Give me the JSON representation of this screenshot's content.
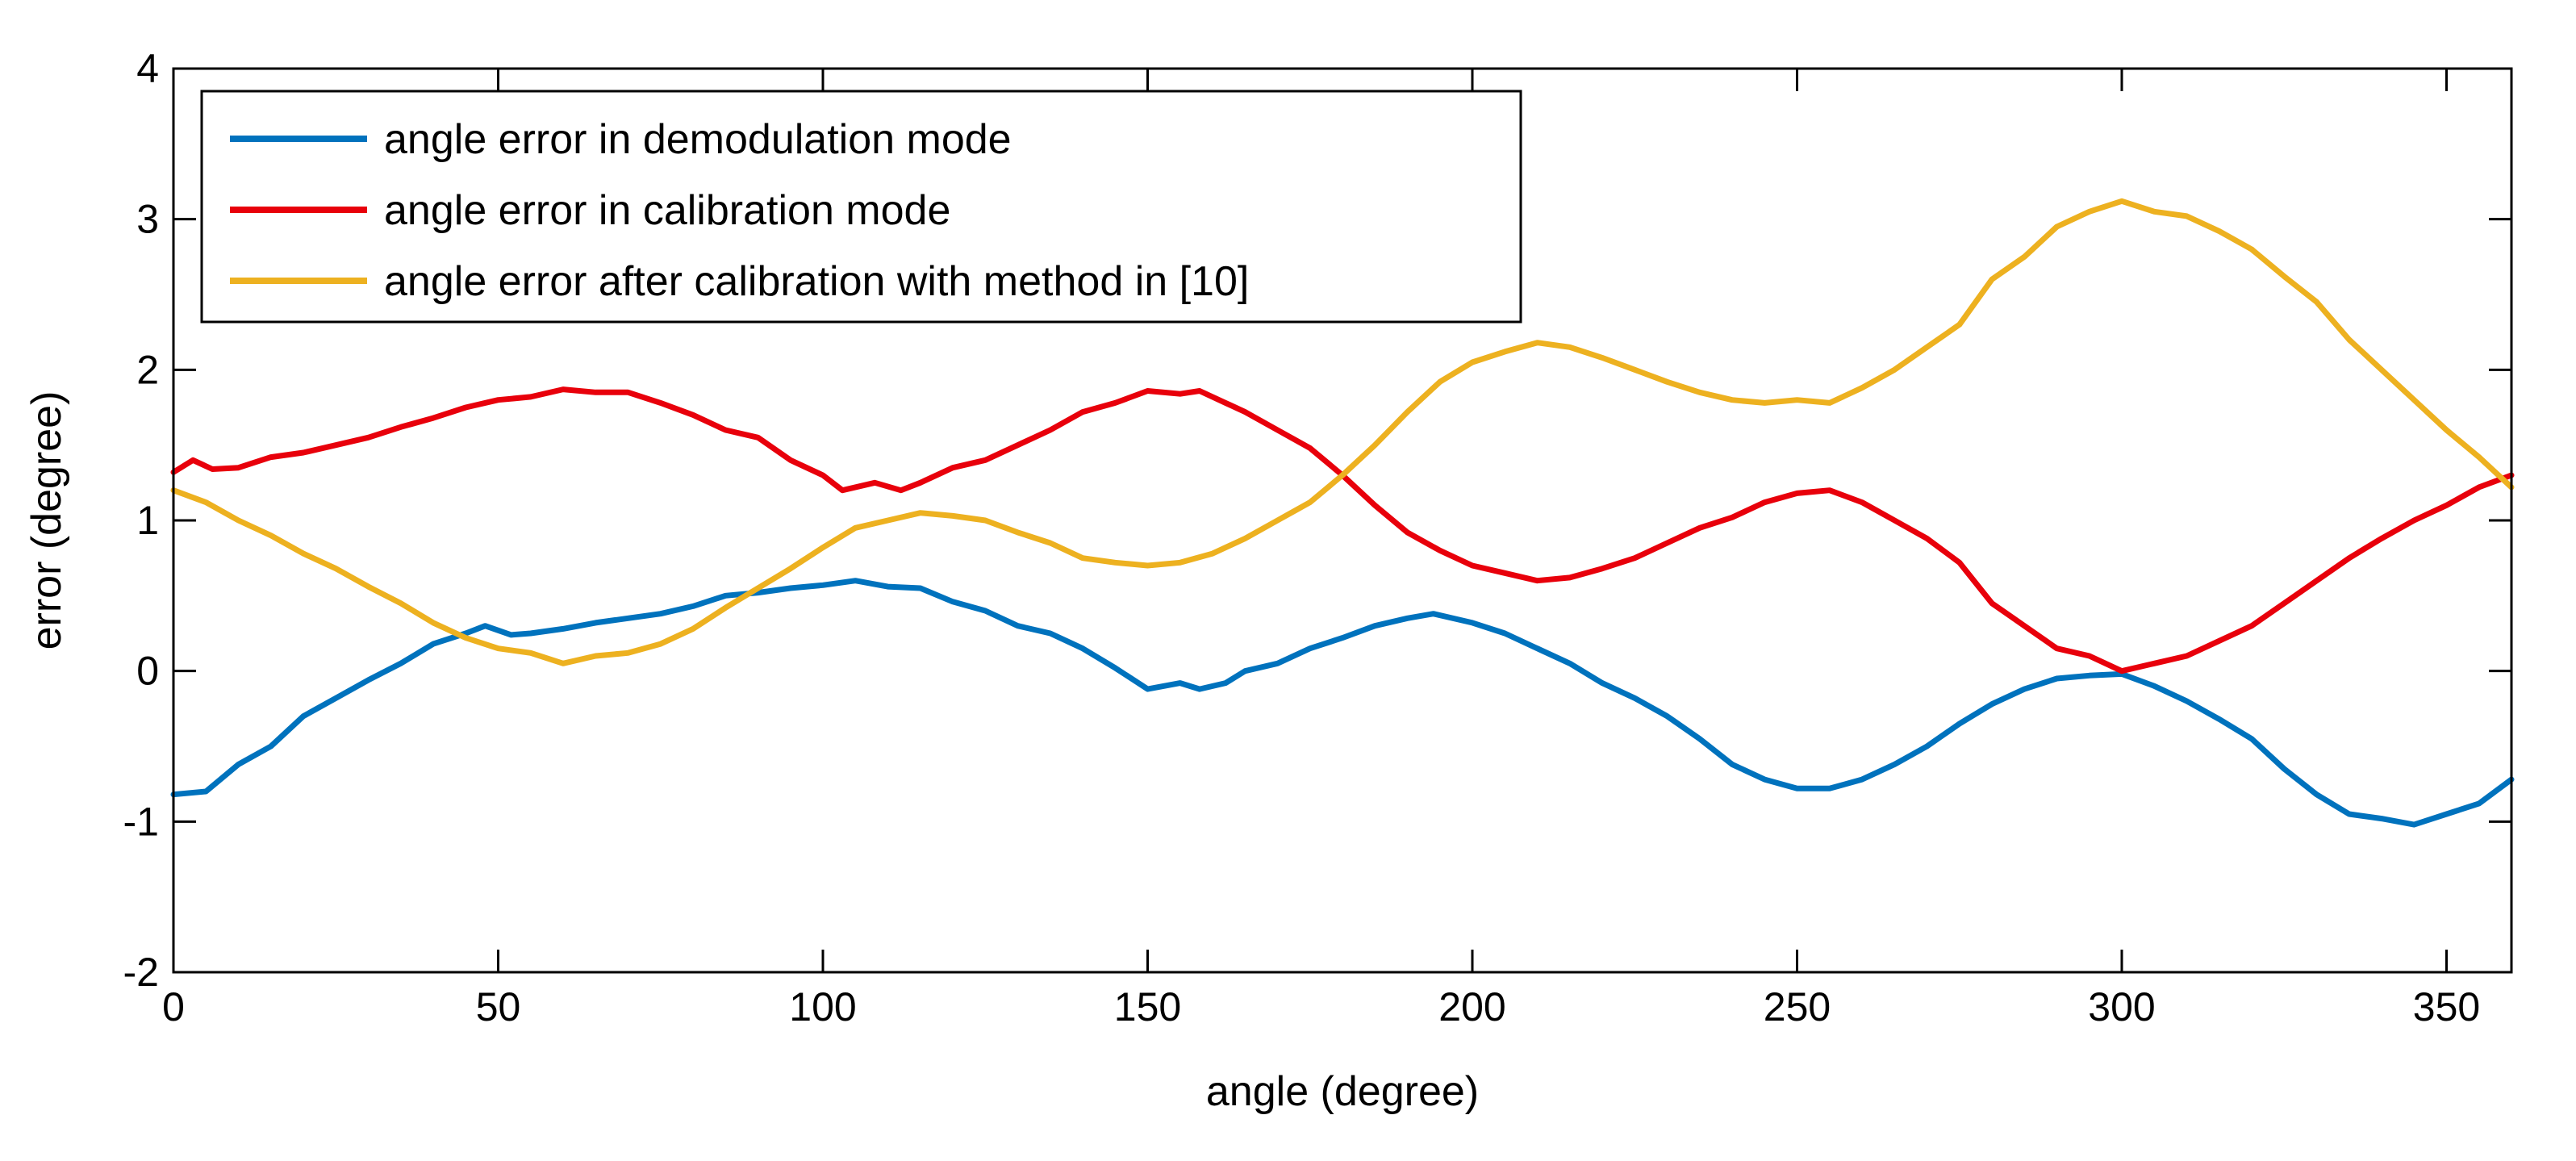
{
  "chart_data": {
    "type": "line",
    "title": "",
    "xlabel": "angle (degree)",
    "ylabel": "error (degree)",
    "xlim": [
      0,
      360
    ],
    "ylim": [
      -2,
      4
    ],
    "xticks": [
      0,
      50,
      100,
      150,
      200,
      250,
      300,
      350
    ],
    "yticks": [
      -2,
      -1,
      0,
      1,
      2,
      3,
      4
    ],
    "grid": false,
    "legend_position": "top-left",
    "series": [
      {
        "name": "angle error in demodulation mode",
        "color": "#0072BD",
        "points": [
          [
            0,
            -0.82
          ],
          [
            5,
            -0.8
          ],
          [
            10,
            -0.62
          ],
          [
            15,
            -0.5
          ],
          [
            20,
            -0.3
          ],
          [
            25,
            -0.18
          ],
          [
            30,
            -0.06
          ],
          [
            35,
            0.05
          ],
          [
            40,
            0.18
          ],
          [
            45,
            0.25
          ],
          [
            48,
            0.3
          ],
          [
            52,
            0.24
          ],
          [
            55,
            0.25
          ],
          [
            60,
            0.28
          ],
          [
            65,
            0.32
          ],
          [
            70,
            0.35
          ],
          [
            75,
            0.38
          ],
          [
            80,
            0.43
          ],
          [
            85,
            0.5
          ],
          [
            90,
            0.52
          ],
          [
            95,
            0.55
          ],
          [
            100,
            0.57
          ],
          [
            105,
            0.6
          ],
          [
            110,
            0.56
          ],
          [
            115,
            0.55
          ],
          [
            120,
            0.46
          ],
          [
            125,
            0.4
          ],
          [
            130,
            0.3
          ],
          [
            135,
            0.25
          ],
          [
            140,
            0.15
          ],
          [
            145,
            0.02
          ],
          [
            150,
            -0.12
          ],
          [
            155,
            -0.08
          ],
          [
            158,
            -0.12
          ],
          [
            162,
            -0.08
          ],
          [
            165,
            0.0
          ],
          [
            170,
            0.05
          ],
          [
            175,
            0.15
          ],
          [
            180,
            0.22
          ],
          [
            185,
            0.3
          ],
          [
            190,
            0.35
          ],
          [
            194,
            0.38
          ],
          [
            200,
            0.32
          ],
          [
            205,
            0.25
          ],
          [
            210,
            0.15
          ],
          [
            215,
            0.05
          ],
          [
            220,
            -0.08
          ],
          [
            225,
            -0.18
          ],
          [
            230,
            -0.3
          ],
          [
            235,
            -0.45
          ],
          [
            240,
            -0.62
          ],
          [
            245,
            -0.72
          ],
          [
            250,
            -0.78
          ],
          [
            255,
            -0.78
          ],
          [
            260,
            -0.72
          ],
          [
            265,
            -0.62
          ],
          [
            270,
            -0.5
          ],
          [
            275,
            -0.35
          ],
          [
            280,
            -0.22
          ],
          [
            285,
            -0.12
          ],
          [
            290,
            -0.05
          ],
          [
            295,
            -0.03
          ],
          [
            300,
            -0.02
          ],
          [
            305,
            -0.1
          ],
          [
            310,
            -0.2
          ],
          [
            315,
            -0.32
          ],
          [
            320,
            -0.45
          ],
          [
            325,
            -0.65
          ],
          [
            330,
            -0.82
          ],
          [
            335,
            -0.95
          ],
          [
            340,
            -0.98
          ],
          [
            345,
            -1.02
          ],
          [
            350,
            -0.95
          ],
          [
            355,
            -0.88
          ],
          [
            360,
            -0.72
          ]
        ]
      },
      {
        "name": "angle error in calibration mode",
        "color": "#E8000B",
        "points": [
          [
            0,
            1.32
          ],
          [
            3,
            1.4
          ],
          [
            6,
            1.34
          ],
          [
            10,
            1.35
          ],
          [
            15,
            1.42
          ],
          [
            20,
            1.45
          ],
          [
            25,
            1.5
          ],
          [
            30,
            1.55
          ],
          [
            35,
            1.62
          ],
          [
            40,
            1.68
          ],
          [
            45,
            1.75
          ],
          [
            50,
            1.8
          ],
          [
            55,
            1.82
          ],
          [
            60,
            1.87
          ],
          [
            65,
            1.85
          ],
          [
            70,
            1.85
          ],
          [
            75,
            1.78
          ],
          [
            80,
            1.7
          ],
          [
            85,
            1.6
          ],
          [
            90,
            1.55
          ],
          [
            95,
            1.4
          ],
          [
            100,
            1.3
          ],
          [
            103,
            1.2
          ],
          [
            108,
            1.25
          ],
          [
            112,
            1.2
          ],
          [
            115,
            1.25
          ],
          [
            120,
            1.35
          ],
          [
            125,
            1.4
          ],
          [
            130,
            1.5
          ],
          [
            135,
            1.6
          ],
          [
            140,
            1.72
          ],
          [
            145,
            1.78
          ],
          [
            150,
            1.86
          ],
          [
            155,
            1.84
          ],
          [
            158,
            1.86
          ],
          [
            162,
            1.78
          ],
          [
            165,
            1.72
          ],
          [
            170,
            1.6
          ],
          [
            175,
            1.48
          ],
          [
            180,
            1.3
          ],
          [
            185,
            1.1
          ],
          [
            190,
            0.92
          ],
          [
            195,
            0.8
          ],
          [
            200,
            0.7
          ],
          [
            205,
            0.65
          ],
          [
            210,
            0.6
          ],
          [
            215,
            0.62
          ],
          [
            220,
            0.68
          ],
          [
            225,
            0.75
          ],
          [
            230,
            0.85
          ],
          [
            235,
            0.95
          ],
          [
            240,
            1.02
          ],
          [
            245,
            1.12
          ],
          [
            250,
            1.18
          ],
          [
            255,
            1.2
          ],
          [
            260,
            1.12
          ],
          [
            265,
            1.0
          ],
          [
            270,
            0.88
          ],
          [
            275,
            0.72
          ],
          [
            280,
            0.45
          ],
          [
            285,
            0.3
          ],
          [
            290,
            0.15
          ],
          [
            295,
            0.1
          ],
          [
            300,
            0.0
          ],
          [
            305,
            0.05
          ],
          [
            310,
            0.1
          ],
          [
            315,
            0.2
          ],
          [
            320,
            0.3
          ],
          [
            325,
            0.45
          ],
          [
            330,
            0.6
          ],
          [
            335,
            0.75
          ],
          [
            340,
            0.88
          ],
          [
            345,
            1.0
          ],
          [
            350,
            1.1
          ],
          [
            355,
            1.22
          ],
          [
            360,
            1.3
          ]
        ]
      },
      {
        "name": "angle error after calibration with method in [10]",
        "color": "#EDB120",
        "points": [
          [
            0,
            1.2
          ],
          [
            5,
            1.12
          ],
          [
            10,
            1.0
          ],
          [
            15,
            0.9
          ],
          [
            20,
            0.78
          ],
          [
            25,
            0.68
          ],
          [
            30,
            0.56
          ],
          [
            35,
            0.45
          ],
          [
            40,
            0.32
          ],
          [
            45,
            0.22
          ],
          [
            50,
            0.15
          ],
          [
            55,
            0.12
          ],
          [
            60,
            0.05
          ],
          [
            65,
            0.1
          ],
          [
            70,
            0.12
          ],
          [
            75,
            0.18
          ],
          [
            80,
            0.28
          ],
          [
            85,
            0.42
          ],
          [
            90,
            0.55
          ],
          [
            95,
            0.68
          ],
          [
            100,
            0.82
          ],
          [
            105,
            0.95
          ],
          [
            110,
            1.0
          ],
          [
            115,
            1.05
          ],
          [
            120,
            1.03
          ],
          [
            125,
            1.0
          ],
          [
            130,
            0.92
          ],
          [
            135,
            0.85
          ],
          [
            140,
            0.75
          ],
          [
            145,
            0.72
          ],
          [
            150,
            0.7
          ],
          [
            155,
            0.72
          ],
          [
            160,
            0.78
          ],
          [
            165,
            0.88
          ],
          [
            170,
            1.0
          ],
          [
            175,
            1.12
          ],
          [
            180,
            1.3
          ],
          [
            185,
            1.5
          ],
          [
            190,
            1.72
          ],
          [
            195,
            1.92
          ],
          [
            200,
            2.05
          ],
          [
            205,
            2.12
          ],
          [
            210,
            2.18
          ],
          [
            215,
            2.15
          ],
          [
            220,
            2.08
          ],
          [
            225,
            2.0
          ],
          [
            230,
            1.92
          ],
          [
            235,
            1.85
          ],
          [
            240,
            1.8
          ],
          [
            245,
            1.78
          ],
          [
            250,
            1.8
          ],
          [
            255,
            1.78
          ],
          [
            260,
            1.88
          ],
          [
            265,
            2.0
          ],
          [
            270,
            2.15
          ],
          [
            275,
            2.3
          ],
          [
            280,
            2.6
          ],
          [
            285,
            2.75
          ],
          [
            290,
            2.95
          ],
          [
            295,
            3.05
          ],
          [
            300,
            3.12
          ],
          [
            305,
            3.05
          ],
          [
            310,
            3.02
          ],
          [
            315,
            2.92
          ],
          [
            320,
            2.8
          ],
          [
            325,
            2.62
          ],
          [
            330,
            2.45
          ],
          [
            335,
            2.2
          ],
          [
            340,
            2.0
          ],
          [
            345,
            1.8
          ],
          [
            350,
            1.6
          ],
          [
            355,
            1.42
          ],
          [
            360,
            1.22
          ]
        ]
      }
    ]
  }
}
